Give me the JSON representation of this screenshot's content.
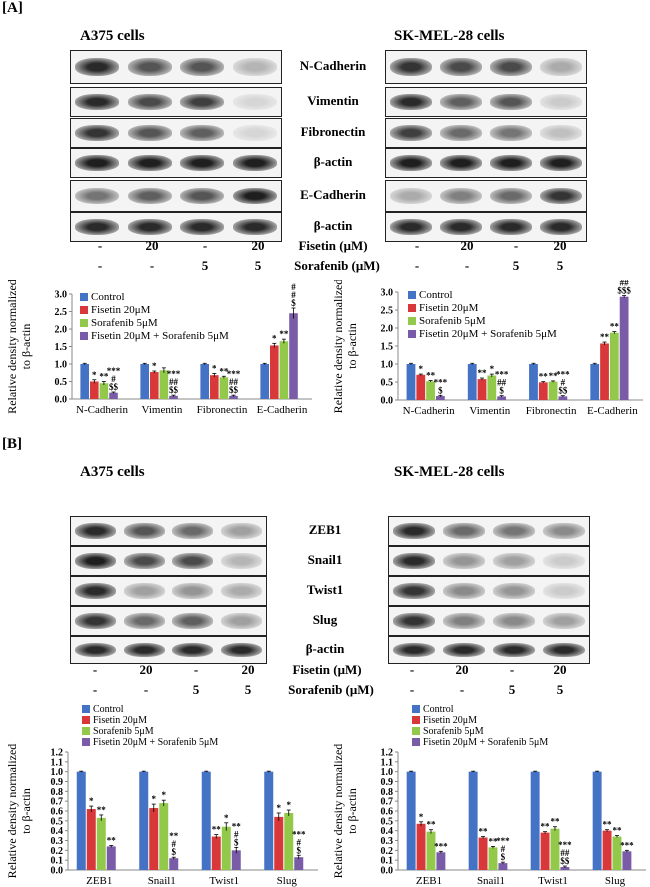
{
  "panel_labels": [
    "[A]",
    "[B]"
  ],
  "cell_lines": [
    "A375 cells",
    "SK-MEL-28 cells"
  ],
  "panelA_proteins": [
    "N-Cadherin",
    "Vimentin",
    "Fibronectin",
    "β-actin",
    "E-Cadherin",
    "β-actin"
  ],
  "panelB_proteins": [
    "ZEB1",
    "Snail1",
    "Twist1",
    "Slug",
    "β-actin"
  ],
  "treatment_labels": {
    "fisetin": "Fisetin (μM)",
    "sorafenib": "Sorafenib (μM)"
  },
  "fisetin_row": [
    "-",
    "20",
    "-",
    "20"
  ],
  "sorafenib_row": [
    "-",
    "-",
    "5",
    "5"
  ],
  "chart_data": [
    {
      "type": "bar",
      "panel": "A",
      "cell_line": "A375 cells",
      "categories": [
        "N-Cadherin",
        "Vimentin",
        "Fibronectin",
        "E-Cadherin"
      ],
      "ylabel": "Relative density normalized to β-actin",
      "ylim": [
        0,
        3.0
      ],
      "yticks": [
        "0.0",
        "0.5",
        "1.0",
        "1.5",
        "2.0",
        "2.5",
        "3.0"
      ],
      "legend_position": "top-left",
      "series": [
        {
          "name": "Control",
          "values": [
            1.0,
            1.0,
            1.0,
            1.0
          ],
          "errors": [
            0.02,
            0.02,
            0.02,
            0.02
          ],
          "marks": [
            "",
            "",
            "",
            ""
          ]
        },
        {
          "name": "Fisetin 20μM",
          "values": [
            0.5,
            0.77,
            0.68,
            1.53
          ],
          "errors": [
            0.05,
            0.03,
            0.05,
            0.06
          ],
          "marks": [
            "*",
            "*",
            "*",
            "*"
          ]
        },
        {
          "name": "Sorafenib 5μM",
          "values": [
            0.45,
            0.82,
            0.62,
            1.65
          ],
          "errors": [
            0.05,
            0.07,
            0.03,
            0.06
          ],
          "marks": [
            "**",
            "",
            "**",
            "**"
          ]
        },
        {
          "name": "Fisetin 20μM + Sorafenib 5μM",
          "values": [
            0.18,
            0.09,
            0.09,
            2.45
          ],
          "errors": [
            0.02,
            0.02,
            0.02,
            0.15
          ],
          "marks": [
            "***\n#\n$$",
            "***\n##\n$$",
            "***\n##\n$$",
            "**\n#\n#\n$"
          ]
        }
      ],
      "colors": [
        "#4472c4",
        "#d9383a",
        "#92c94a",
        "#7a5ba8"
      ]
    },
    {
      "type": "bar",
      "panel": "A",
      "cell_line": "SK-MEL-28 cells",
      "categories": [
        "N-Cadherin",
        "Vimentin",
        "Fibronectin",
        "E-Cadherin"
      ],
      "ylabel": "Relative density normalized to β-actin",
      "ylim": [
        0,
        3.0
      ],
      "yticks": [
        "0.0",
        "0.5",
        "1.0",
        "1.5",
        "2.0",
        "2.5",
        "3.0"
      ],
      "legend_position": "top-left",
      "series": [
        {
          "name": "Control",
          "values": [
            1.0,
            1.0,
            1.0,
            1.0
          ],
          "errors": [
            0.02,
            0.02,
            0.02,
            0.02
          ],
          "marks": [
            "",
            "",
            "",
            ""
          ]
        },
        {
          "name": "Fisetin 20μM",
          "values": [
            0.7,
            0.58,
            0.49,
            1.57
          ],
          "errors": [
            0.02,
            0.03,
            0.02,
            0.04
          ],
          "marks": [
            "*",
            "**",
            "**",
            "**"
          ]
        },
        {
          "name": "Sorafenib 5μM",
          "values": [
            0.52,
            0.68,
            0.51,
            1.87
          ],
          "errors": [
            0.02,
            0.04,
            0.02,
            0.03
          ],
          "marks": [
            "**",
            "*",
            "**",
            "**"
          ]
        },
        {
          "name": "Fisetin 20μM + Sorafenib 5μM",
          "values": [
            0.11,
            0.1,
            0.1,
            2.87
          ],
          "errors": [
            0.02,
            0.02,
            0.02,
            0.03
          ],
          "marks": [
            "***\n$",
            "***\n##\n$",
            "***\n#\n$$",
            "***\n##\n$$$"
          ]
        }
      ],
      "colors": [
        "#4472c4",
        "#d9383a",
        "#92c94a",
        "#7a5ba8"
      ]
    },
    {
      "type": "bar",
      "panel": "B",
      "cell_line": "A375 cells",
      "categories": [
        "ZEB1",
        "Snail1",
        "Twist1",
        "Slug"
      ],
      "ylabel": "Relative density normalized to β-actin",
      "ylim": [
        0,
        1.2
      ],
      "yticks": [
        "0.0",
        "0.1",
        "0.2",
        "0.3",
        "0.4",
        "0.5",
        "0.6",
        "0.7",
        "0.8",
        "0.9",
        "1.0",
        "1.1",
        "1.2"
      ],
      "legend_position": "top",
      "series": [
        {
          "name": "Control",
          "values": [
            1.0,
            1.0,
            1.0,
            1.0
          ],
          "errors": [
            0.005,
            0.005,
            0.005,
            0.005
          ],
          "marks": [
            "",
            "",
            "",
            ""
          ]
        },
        {
          "name": "Fisetin 20μM",
          "values": [
            0.62,
            0.63,
            0.34,
            0.54
          ],
          "errors": [
            0.03,
            0.04,
            0.02,
            0.04
          ],
          "marks": [
            "*",
            "*",
            "**",
            "*"
          ]
        },
        {
          "name": "Sorafenib 5μM",
          "values": [
            0.53,
            0.68,
            0.44,
            0.58
          ],
          "errors": [
            0.03,
            0.03,
            0.04,
            0.03
          ],
          "marks": [
            "**",
            "*",
            "*",
            "*"
          ]
        },
        {
          "name": "Fisetin 20μM + Sorafenib 5μM",
          "values": [
            0.24,
            0.12,
            0.2,
            0.13
          ],
          "errors": [
            0.01,
            0.01,
            0.03,
            0.02
          ],
          "marks": [
            "**",
            "**\n#\n$",
            "**\n#\n$",
            "***\n#\n$"
          ]
        }
      ],
      "colors": [
        "#4472c4",
        "#d9383a",
        "#92c94a",
        "#7a5ba8"
      ]
    },
    {
      "type": "bar",
      "panel": "B",
      "cell_line": "SK-MEL-28 cells",
      "categories": [
        "ZEB1",
        "Snail1",
        "Twist1",
        "Slug"
      ],
      "ylabel": "Relative density normalized to β-actin",
      "ylim": [
        0,
        1.2
      ],
      "yticks": [
        "0.0",
        "0.1",
        "0.2",
        "0.3",
        "0.4",
        "0.5",
        "0.6",
        "0.7",
        "0.8",
        "0.9",
        "1.0",
        "1.1",
        "1.2"
      ],
      "legend_position": "top",
      "series": [
        {
          "name": "Control",
          "values": [
            1.0,
            1.0,
            1.0,
            1.0
          ],
          "errors": [
            0.005,
            0.005,
            0.005,
            0.005
          ],
          "marks": [
            "",
            "",
            "",
            ""
          ]
        },
        {
          "name": "Fisetin 20μM",
          "values": [
            0.47,
            0.33,
            0.38,
            0.4
          ],
          "errors": [
            0.02,
            0.01,
            0.01,
            0.01
          ],
          "marks": [
            "*",
            "**",
            "**",
            "**"
          ]
        },
        {
          "name": "Sorafenib 5μM",
          "values": [
            0.39,
            0.23,
            0.42,
            0.34
          ],
          "errors": [
            0.02,
            0.01,
            0.02,
            0.01
          ],
          "marks": [
            "**",
            "**",
            "**",
            "**"
          ]
        },
        {
          "name": "Fisetin 20μM + Sorafenib 5μM",
          "values": [
            0.18,
            0.07,
            0.03,
            0.19
          ],
          "errors": [
            0.01,
            0.01,
            0.01,
            0.01
          ],
          "marks": [
            "***",
            "***\n#\n$",
            "***\n##\n$$",
            "***"
          ]
        }
      ],
      "colors": [
        "#4472c4",
        "#d9383a",
        "#92c94a",
        "#7a5ba8"
      ]
    }
  ]
}
